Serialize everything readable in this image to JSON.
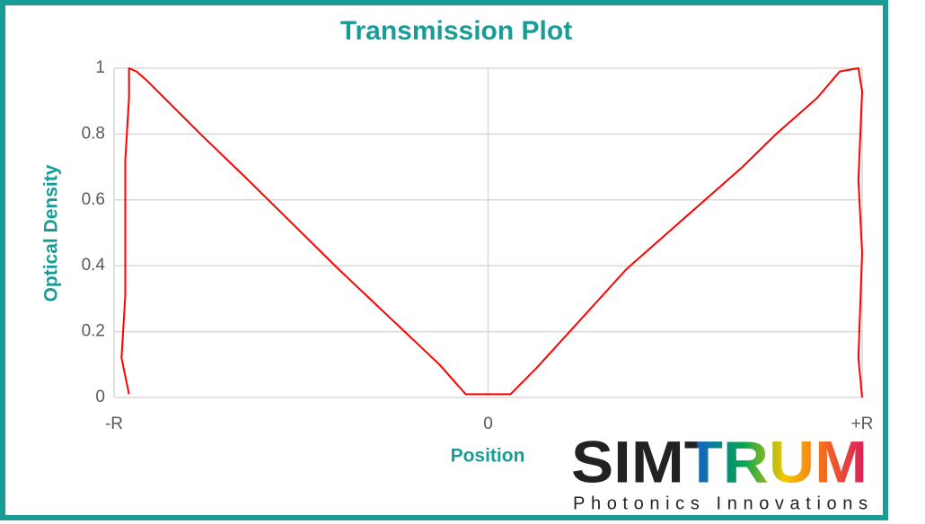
{
  "chart_data": {
    "type": "line",
    "title": "Transmission Plot",
    "x_label": "Position",
    "y_label": "Optical Density",
    "x": [
      -0.96,
      -0.98,
      -0.97,
      -0.97,
      -0.97,
      -0.96,
      -0.96,
      -0.94,
      -0.91,
      -0.76,
      -0.65,
      -0.4,
      -0.13,
      -0.06,
      0.06,
      0.13,
      0.37,
      0.68,
      0.77,
      0.88,
      0.94,
      0.99,
      1.0,
      0.99,
      1.0,
      0.99,
      1.0
    ],
    "values": [
      0.01,
      0.12,
      0.31,
      0.61,
      0.72,
      0.91,
      1.0,
      0.99,
      0.96,
      0.79,
      0.67,
      0.39,
      0.1,
      0.01,
      0.01,
      0.09,
      0.39,
      0.7,
      0.8,
      0.91,
      0.99,
      1.0,
      0.93,
      0.66,
      0.44,
      0.12,
      0
    ],
    "color": "#ff0000",
    "xlim": [
      -1,
      1
    ],
    "ylim": [
      0,
      1
    ],
    "xticks": [
      {
        "value": -1,
        "label": "-R"
      },
      0,
      {
        "value": 1,
        "label": "+R"
      }
    ],
    "yticks": [
      0,
      0.2,
      0.4,
      0.6,
      0.8,
      1
    ],
    "grid": true,
    "logo": {
      "name": "SIMTRUM",
      "tagline": "Photonics Innovations"
    }
  }
}
